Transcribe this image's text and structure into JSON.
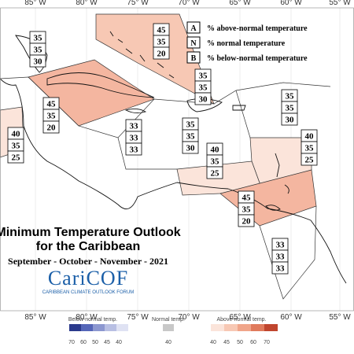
{
  "map": {
    "longitude_labels": [
      "85° W",
      "80° W",
      "75° W",
      "70° W",
      "65° W",
      "60° W",
      "55° W"
    ],
    "key": [
      {
        "letter": "A",
        "text": "% above-normal temperature"
      },
      {
        "letter": "N",
        "text": "% normal temperature"
      },
      {
        "letter": "B",
        "text": "% below-normal temperature"
      }
    ],
    "title": {
      "line1": "Minimum Temperature Outlook",
      "line2": "for the Caribbean",
      "period": "September - October - November - 2021"
    },
    "logo": {
      "name": "CariCOF",
      "subtitle": "CARIBBEAN CLIMATE OUTLOOK FORUM"
    },
    "zones": [
      {
        "above": 35,
        "normal": 35,
        "below": 30
      },
      {
        "above": 45,
        "normal": 35,
        "below": 20
      },
      {
        "above": 45,
        "normal": 35,
        "below": 20
      },
      {
        "above": 35,
        "normal": 35,
        "below": 30
      },
      {
        "above": 33,
        "normal": 33,
        "below": 33
      },
      {
        "above": 35,
        "normal": 35,
        "below": 30
      },
      {
        "above": 35,
        "normal": 35,
        "below": 30
      },
      {
        "above": 40,
        "normal": 35,
        "below": 25
      },
      {
        "above": 40,
        "normal": 35,
        "below": 25
      },
      {
        "above": 40,
        "normal": 35,
        "below": 25
      },
      {
        "above": 45,
        "normal": 35,
        "below": 20
      },
      {
        "above": 33,
        "normal": 33,
        "below": 33
      }
    ],
    "scale": {
      "below_title": "Below-normal temp.",
      "below_ticks": [
        70,
        60,
        50,
        45,
        40
      ],
      "normal_title": "Normal temp.",
      "normal_tick": 40,
      "above_title": "Above-normal temp.",
      "above_ticks": [
        40,
        45,
        50,
        60,
        70
      ]
    }
  }
}
